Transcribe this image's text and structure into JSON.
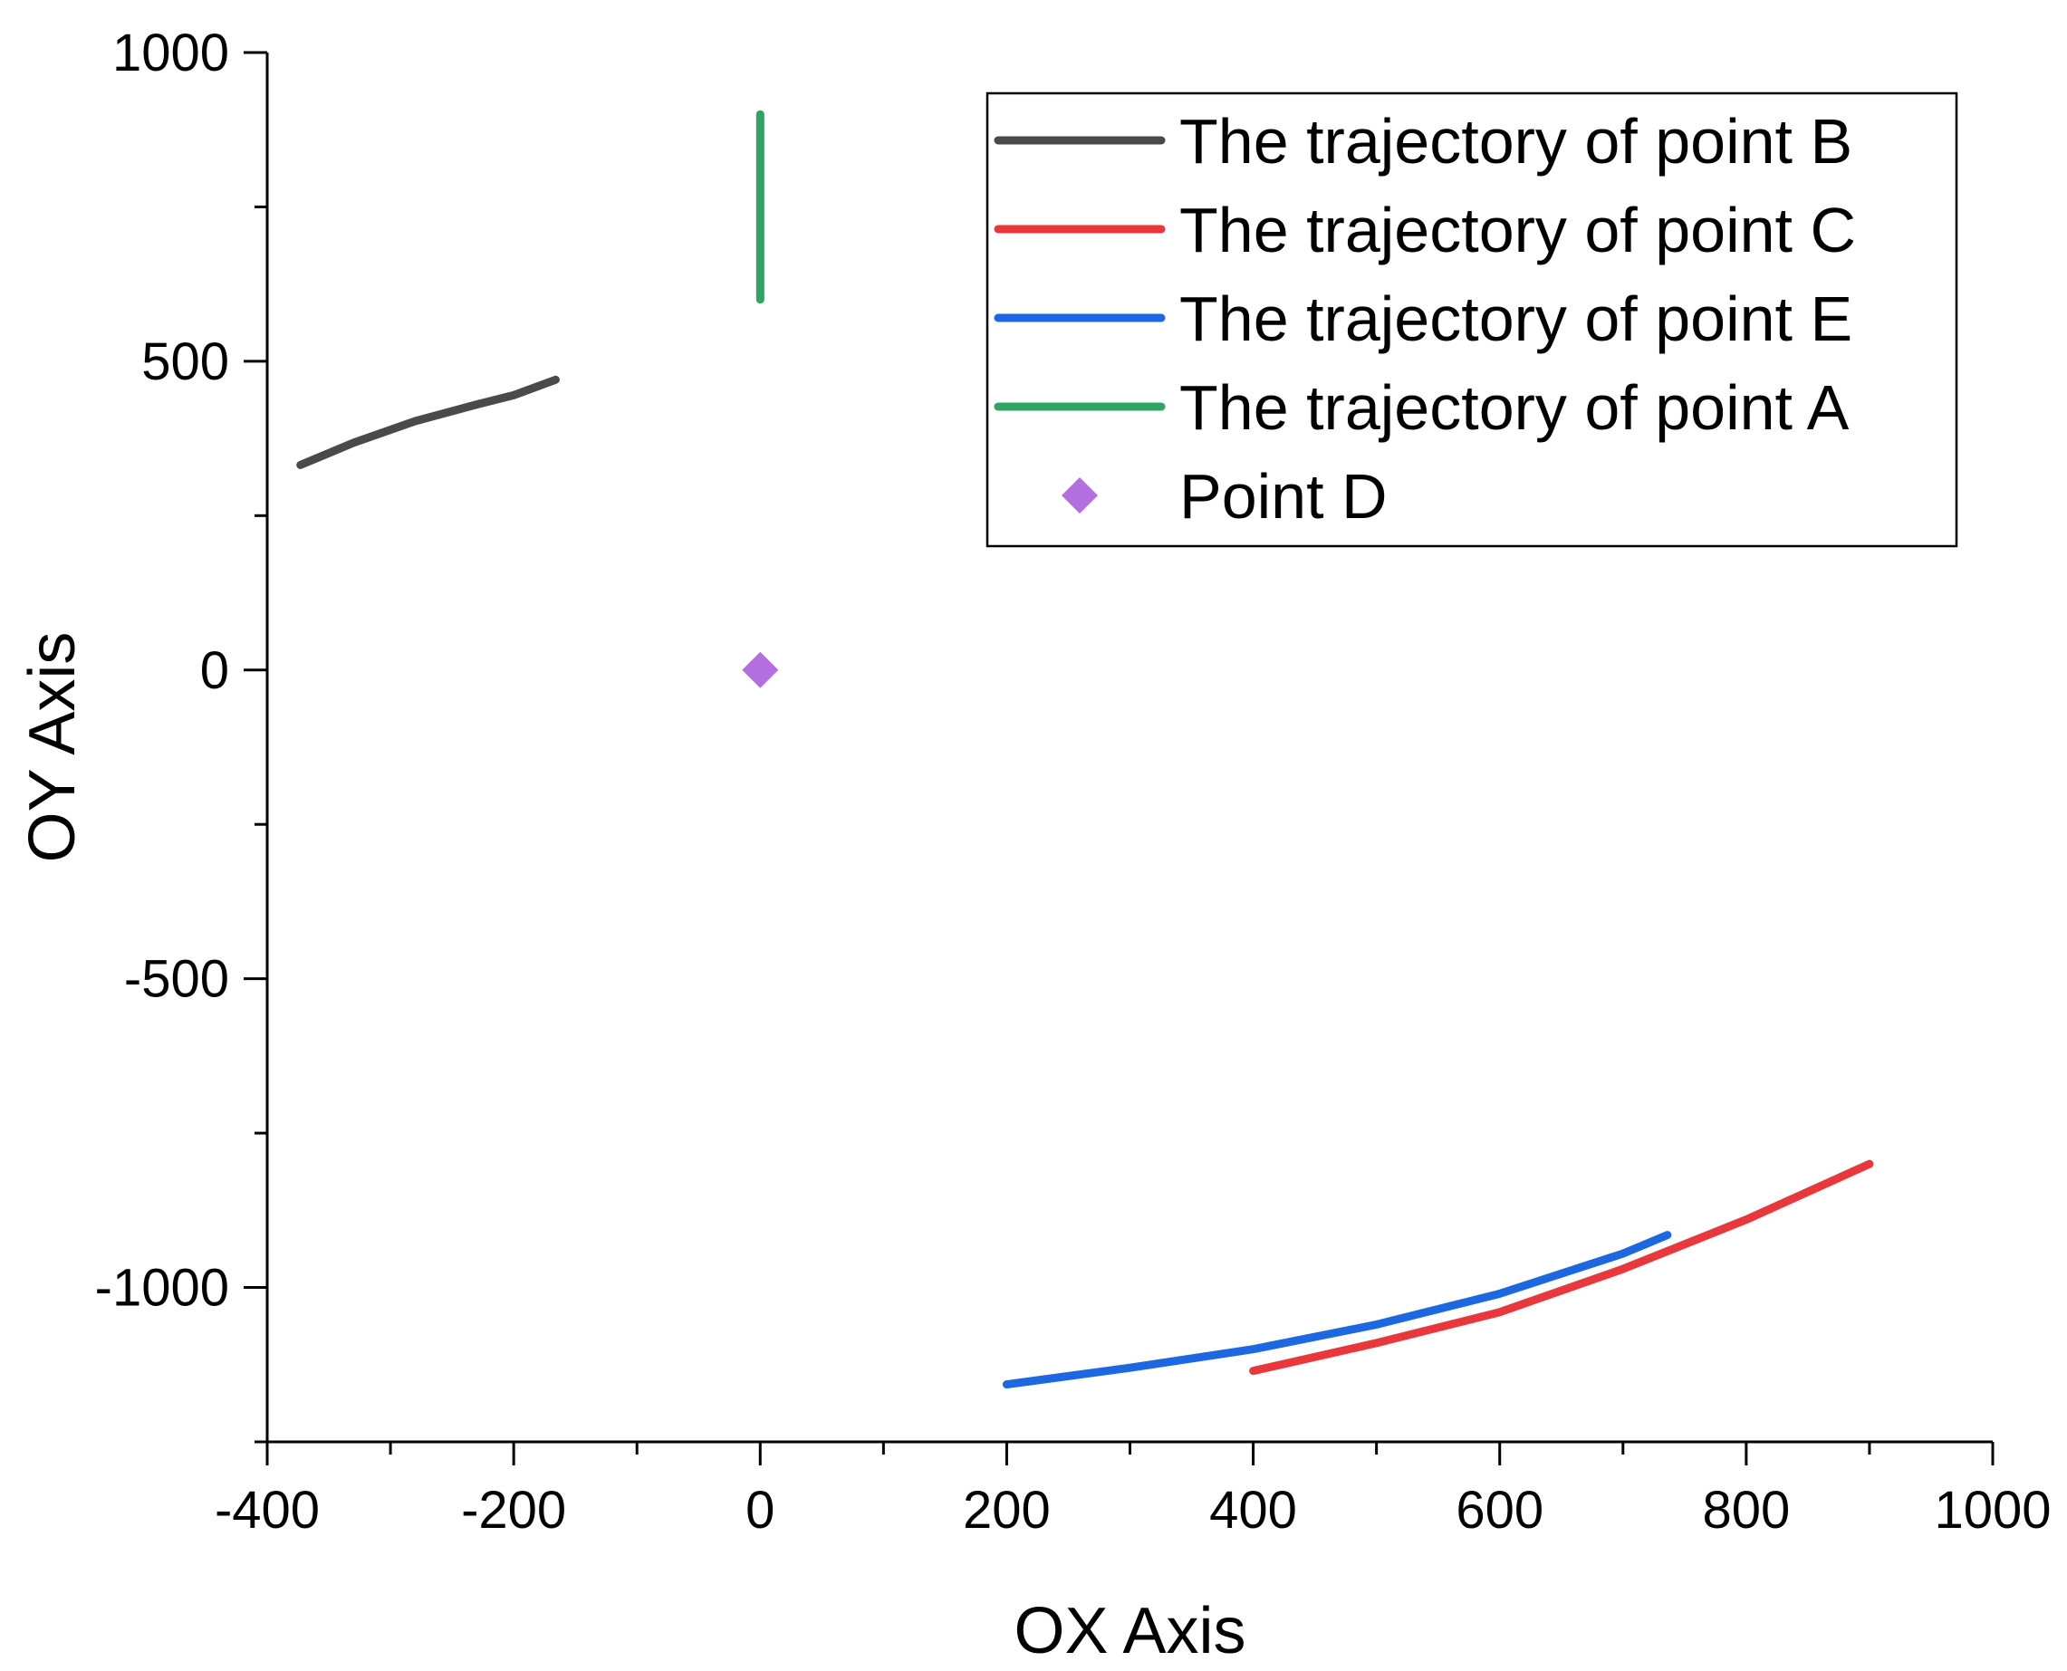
{
  "chart_data": {
    "type": "line",
    "title": "",
    "xlabel": "OX Axis",
    "ylabel": "OY Axis",
    "xlim": [
      -400,
      1000
    ],
    "ylim": [
      -1250,
      1000
    ],
    "x_major_ticks": [
      -400,
      -200,
      0,
      200,
      400,
      600,
      800,
      1000
    ],
    "x_tick_labels": [
      "-400",
      "-200",
      "0",
      "200",
      "400",
      "600",
      "800",
      "1000"
    ],
    "x_minor_ticks": [
      -300,
      -100,
      100,
      300,
      500,
      700,
      900
    ],
    "y_major_ticks": [
      1000,
      500,
      0,
      -500,
      -1000
    ],
    "y_tick_labels": [
      "1000",
      "500",
      "0",
      "-500",
      "-1000"
    ],
    "y_minor_ticks": [
      750,
      250,
      -250,
      -750,
      -1250
    ],
    "grid": false,
    "legend_position": "top-right",
    "series": [
      {
        "name": "The trajectory of point B",
        "color": "#4a4a4a",
        "kind": "line",
        "points": [
          [
            -373,
            332
          ],
          [
            -330,
            368
          ],
          [
            -280,
            403
          ],
          [
            -230,
            430
          ],
          [
            -200,
            445
          ],
          [
            -166,
            470
          ]
        ]
      },
      {
        "name": "The trajectory of point C",
        "color": "#e8383b",
        "kind": "line",
        "points": [
          [
            400,
            -1135
          ],
          [
            500,
            -1090
          ],
          [
            600,
            -1040
          ],
          [
            700,
            -970
          ],
          [
            800,
            -890
          ],
          [
            900,
            -800
          ]
        ]
      },
      {
        "name": "The trajectory of point E",
        "color": "#1d68e0",
        "kind": "line",
        "points": [
          [
            200,
            -1157
          ],
          [
            300,
            -1130
          ],
          [
            400,
            -1100
          ],
          [
            500,
            -1060
          ],
          [
            600,
            -1010
          ],
          [
            700,
            -945
          ],
          [
            736,
            -915
          ]
        ]
      },
      {
        "name": "The trajectory of point A",
        "color": "#2fa463",
        "kind": "line",
        "points": [
          [
            0,
            600
          ],
          [
            0,
            900
          ]
        ]
      },
      {
        "name": "Point D",
        "color": "#b36ee0",
        "kind": "marker",
        "points": [
          [
            0,
            0
          ]
        ]
      }
    ]
  }
}
